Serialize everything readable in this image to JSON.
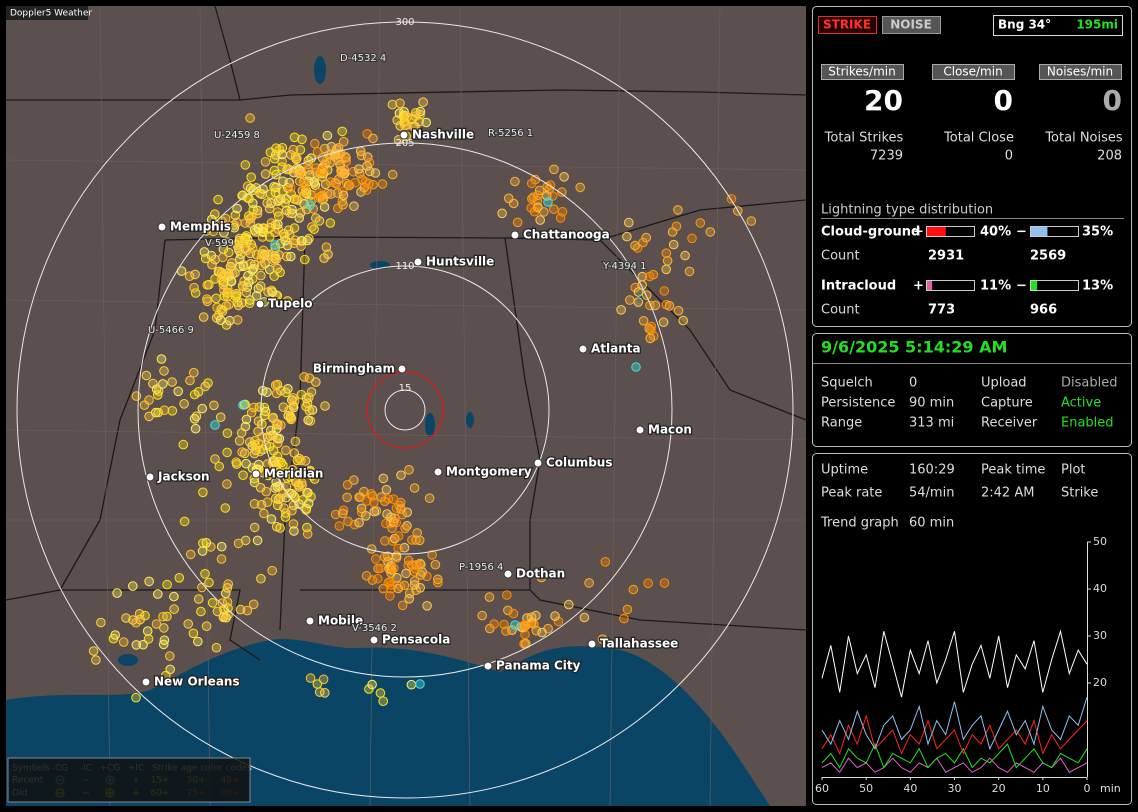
{
  "map": {
    "title": "Doppler5 Weather",
    "range_labels": [
      "300",
      "205",
      "110",
      "15"
    ],
    "cities": [
      "Nashville",
      "Memphis",
      "Chattanooga",
      "Huntsville",
      "Tupelo",
      "Atlanta",
      "Birmingham",
      "Macon",
      "Jackson",
      "Meridian",
      "Montgomery",
      "Columbus",
      "Dothan",
      "Mobile",
      "Pensacola",
      "Tallahassee",
      "Panama City",
      "New Orleans"
    ],
    "stations": [
      "D-4532 4",
      "U-2459 8",
      "R-5256 1",
      "V-599",
      "Y-4394 1",
      "U-5466 9",
      "P-1956 4",
      "V-3546 2"
    ],
    "legend": {
      "symbols_label": "Symbols",
      "types": [
        "-CG",
        "-IC",
        "+CG",
        "+IC"
      ],
      "age_label": "Strike age color codes",
      "rows": [
        "Recent",
        "Old"
      ],
      "ages": [
        [
          "15+",
          "30+",
          "45+"
        ],
        [
          "60+",
          "75+",
          "90+"
        ]
      ]
    }
  },
  "panel": {
    "mode_buttons": [
      "STRIKE",
      "NOISE"
    ],
    "bearing": "Bng 34°",
    "distance": "195mi",
    "rates": [
      {
        "label": "Strikes/min",
        "value": 20
      },
      {
        "label": "Close/min",
        "value": 0
      },
      {
        "label": "Noises/min",
        "value": 0
      }
    ],
    "totals": [
      {
        "label": "Total Strikes",
        "value": 7239
      },
      {
        "label": "Total Close",
        "value": 0
      },
      {
        "label": "Total Noises",
        "value": 208
      }
    ],
    "distribution": {
      "title": "Lightning type distribution",
      "count_label": "Count",
      "plus_sign": "+",
      "minus_sign": "−",
      "rows": [
        {
          "name": "Cloud-ground",
          "plus_pct": {
            "value": 40,
            "label": "40%"
          },
          "minus_pct": {
            "value": 35,
            "label": "35%"
          },
          "plus_count": 2931,
          "minus_count": 2569
        },
        {
          "name": "Intracloud",
          "plus_pct": {
            "value": 11,
            "label": "11%"
          },
          "minus_pct": {
            "value": 13,
            "label": "13%"
          },
          "plus_count": 773,
          "minus_count": 966
        }
      ]
    },
    "status": {
      "datetime": "9/6/2025 5:14:29 AM",
      "rows": [
        [
          "Squelch",
          "0",
          "Upload",
          "Disabled"
        ],
        [
          "Persistence",
          "90 min",
          "Capture",
          "Active"
        ],
        [
          "Range",
          "313 mi",
          "Receiver",
          "Enabled"
        ]
      ]
    },
    "stats": {
      "rows": [
        [
          "Uptime",
          "160:29",
          "Peak time",
          "Plot"
        ],
        [
          "Peak rate",
          "54/min",
          "2:42 AM",
          "Strike"
        ]
      ],
      "trend_label": "Trend graph",
      "trend_window": "60 min"
    }
  },
  "chart_data": {
    "type": "line",
    "x": [
      60,
      58,
      56,
      54,
      52,
      50,
      48,
      46,
      44,
      42,
      40,
      38,
      36,
      34,
      32,
      30,
      28,
      26,
      24,
      22,
      20,
      18,
      16,
      14,
      12,
      10,
      8,
      6,
      4,
      2,
      0
    ],
    "x_unit": "min",
    "xlim": [
      60,
      0
    ],
    "xticks": [
      60,
      50,
      40,
      30,
      20,
      10,
      0
    ],
    "ylim": [
      0,
      50
    ],
    "yticks": [
      20,
      30,
      40,
      50
    ],
    "series": [
      {
        "color": "#ffffff",
        "values": [
          21,
          28,
          18,
          30,
          22,
          26,
          19,
          31,
          24,
          17,
          27,
          22,
          29,
          20,
          25,
          31,
          18,
          24,
          28,
          21,
          30,
          19,
          26,
          23,
          29,
          18,
          25,
          31,
          22,
          27,
          24
        ]
      },
      {
        "color": "#8fc0f0",
        "values": [
          10,
          7,
          12,
          8,
          14,
          9,
          6,
          11,
          13,
          8,
          10,
          15,
          7,
          12,
          9,
          16,
          8,
          11,
          13,
          6,
          10,
          14,
          9,
          12,
          7,
          15,
          10,
          8,
          13,
          11,
          17
        ]
      },
      {
        "color": "#ff2020",
        "values": [
          6,
          9,
          5,
          11,
          7,
          13,
          6,
          8,
          10,
          5,
          9,
          7,
          12,
          6,
          8,
          10,
          5,
          9,
          7,
          11,
          6,
          8,
          10,
          7,
          12,
          5,
          9,
          6,
          8,
          10,
          12
        ]
      },
      {
        "color": "#20e020",
        "values": [
          3,
          5,
          2,
          6,
          4,
          3,
          7,
          2,
          5,
          4,
          3,
          6,
          2,
          4,
          5,
          3,
          6,
          2,
          4,
          3,
          5,
          7,
          2,
          4,
          6,
          3,
          2,
          5,
          4,
          3,
          6
        ]
      },
      {
        "color": "#e060c0",
        "values": [
          2,
          3,
          1,
          4,
          2,
          3,
          1,
          2,
          4,
          2,
          1,
          3,
          2,
          4,
          1,
          2,
          3,
          1,
          2,
          4,
          2,
          1,
          3,
          2,
          1,
          3,
          2,
          4,
          1,
          2,
          3
        ]
      }
    ]
  }
}
